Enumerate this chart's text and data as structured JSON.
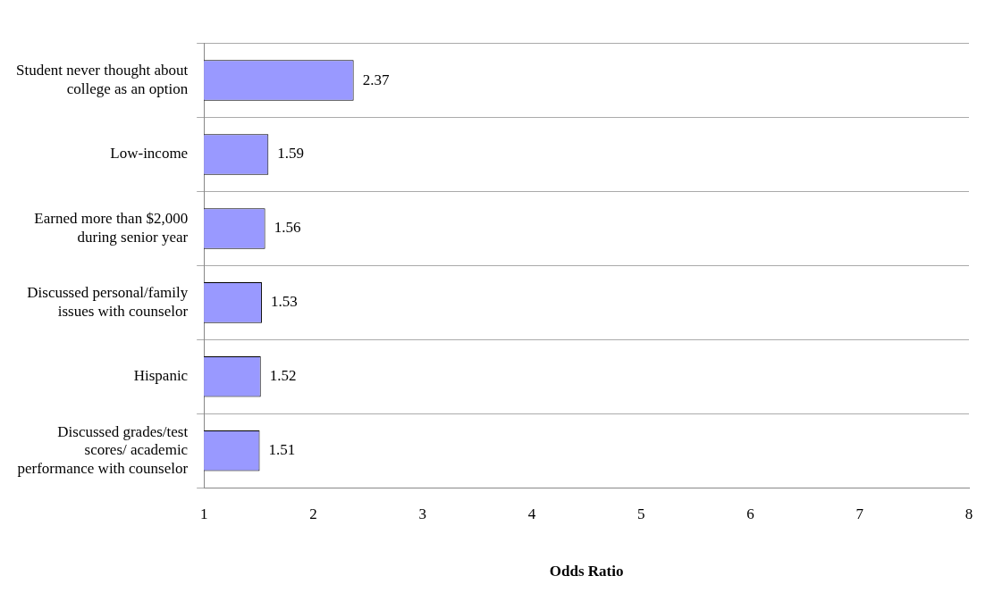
{
  "chart_data": {
    "type": "bar",
    "orientation": "horizontal",
    "xlabel": "Odds Ratio",
    "categories": [
      "Student never thought about college as an option",
      "Low-income",
      "Earned more than $2,000 during senior year",
      "Discussed personal/family issues with counselor",
      "Hispanic",
      "Discussed grades/test scores/ academic performance with counselor"
    ],
    "values": [
      2.37,
      1.59,
      1.56,
      1.53,
      1.52,
      1.51
    ],
    "color": "#9999ff",
    "xlim": [
      1,
      8
    ],
    "xticks": [
      1,
      2,
      3,
      4,
      5,
      6,
      7,
      8
    ],
    "grid": "y",
    "data_labels": true,
    "legend": false
  }
}
